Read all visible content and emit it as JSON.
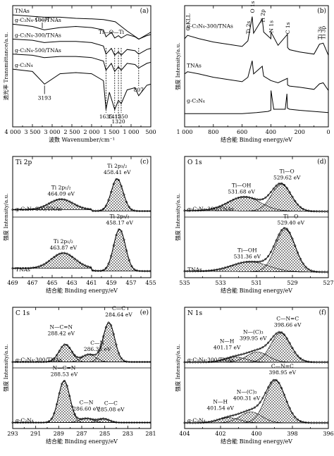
{
  "chart_data": [
    {
      "id": "a",
      "type": "line",
      "panel_label": "(a)",
      "xlabel": "波数 Wavenumber/cm⁻¹",
      "ylabel": "透光率 Transmittance/a.u.",
      "xlim": [
        4000,
        500
      ],
      "x_reversed": true,
      "xticks": [
        "4 000",
        "3 500",
        "3 000",
        "2 500",
        "2 000",
        "1 500",
        "1 000",
        "500"
      ],
      "series": [
        {
          "name": "TNAs",
          "x": [
            4000,
            3600,
            3200,
            2800,
            2400,
            2000,
            1700,
            1400,
            1100,
            800,
            600,
            500
          ],
          "y": [
            9.7,
            9.6,
            9.5,
            9.5,
            9.4,
            9.35,
            9.3,
            9.1,
            8.3,
            7.6,
            8.0,
            8.2
          ]
        },
        {
          "name": "g-C₃N₄-100/TNAs",
          "x": [
            4000,
            3500,
            3200,
            2800,
            2400,
            2000,
            1700,
            1635,
            1500,
            1415,
            1320,
            1250,
            1100,
            900,
            807,
            600,
            500
          ],
          "y": [
            8.9,
            8.7,
            8.4,
            8.6,
            8.7,
            8.6,
            8.4,
            7.8,
            8.2,
            7.7,
            7.9,
            7.7,
            8.0,
            7.8,
            7.6,
            7.9,
            8.0
          ]
        },
        {
          "name": "g-C₃N₄-300/TNAs",
          "x": [
            4000,
            3500,
            3200,
            2800,
            2400,
            2000,
            1700,
            1635,
            1500,
            1415,
            1320,
            1250,
            1100,
            900,
            807,
            600,
            500
          ],
          "y": [
            7.6,
            7.5,
            7.3,
            7.4,
            7.4,
            7.3,
            7.0,
            6.3,
            6.8,
            6.2,
            6.5,
            6.2,
            6.7,
            6.6,
            6.3,
            6.7,
            6.8
          ]
        },
        {
          "name": "g-C₃N₄-500/TNAs",
          "x": [
            4000,
            3500,
            3200,
            2800,
            2400,
            2000,
            1700,
            1635,
            1500,
            1415,
            1320,
            1250,
            1100,
            900,
            807,
            600,
            500
          ],
          "y": [
            6.3,
            6.2,
            6.0,
            6.1,
            6.1,
            6.0,
            5.7,
            4.9,
            5.5,
            4.8,
            5.2,
            4.9,
            5.5,
            5.4,
            5.1,
            5.5,
            5.6
          ]
        },
        {
          "name": "g-C₃N₄",
          "x": [
            4000,
            3500,
            3193,
            2800,
            2400,
            2000,
            1700,
            1635,
            1550,
            1415,
            1320,
            1250,
            1100,
            900,
            807,
            600,
            500
          ],
          "y": [
            5.0,
            4.8,
            3.7,
            4.6,
            4.7,
            4.6,
            4.0,
            1.5,
            3.0,
            1.5,
            2.3,
            2.0,
            3.2,
            3.4,
            2.7,
            3.6,
            3.7
          ]
        }
      ],
      "annotations": [
        "O—H",
        "Ti—O—Ti",
        "3193",
        "1635",
        "1415",
        "1320",
        "1250",
        "807"
      ]
    },
    {
      "id": "b",
      "type": "line",
      "panel_label": "(b)",
      "xlabel": "结合能 Binding energy/eV",
      "ylabel": "强度 Intensity/a.u.",
      "xlim": [
        1000,
        0
      ],
      "x_reversed": true,
      "xticks": [
        "1 000",
        "800",
        "600",
        "400",
        "200",
        "0"
      ],
      "series": [
        {
          "name": "g-C₃N₄-300/TNAs",
          "x": [
            1000,
            980,
            900,
            800,
            700,
            600,
            560,
            530,
            520,
            460,
            455,
            450,
            400,
            399,
            350,
            285,
            284,
            270,
            200,
            100,
            62,
            36,
            0
          ],
          "y": [
            8.0,
            8.3,
            8.0,
            7.7,
            7.5,
            7.3,
            7.8,
            10.0,
            8.5,
            9.8,
            9.2,
            8.6,
            8.0,
            8.6,
            7.4,
            8.4,
            7.2,
            7.0,
            6.8,
            6.6,
            7.5,
            7.6,
            6.5
          ]
        },
        {
          "name": "TNAs",
          "x": [
            1000,
            980,
            900,
            800,
            700,
            600,
            560,
            530,
            520,
            460,
            455,
            450,
            400,
            350,
            285,
            284,
            270,
            200,
            100,
            62,
            36,
            0
          ],
          "y": [
            4.8,
            5.0,
            4.8,
            4.5,
            4.3,
            4.1,
            4.5,
            6.0,
            4.8,
            5.5,
            5.0,
            4.6,
            4.2,
            4.0,
            4.4,
            3.8,
            3.7,
            3.6,
            3.4,
            3.9,
            4.0,
            3.3
          ]
        },
        {
          "name": "g-C₃N₄",
          "x": [
            1000,
            800,
            600,
            500,
            420,
            400,
            399,
            380,
            300,
            288,
            285,
            270,
            200,
            100,
            0
          ],
          "y": [
            1.2,
            1.2,
            1.2,
            1.3,
            1.4,
            1.5,
            3.3,
            1.6,
            1.6,
            3.0,
            1.7,
            1.6,
            1.5,
            1.4,
            1.3
          ]
        }
      ],
      "annotations": [
        "O KLL",
        "Ti 2s",
        "O 1s",
        "Ti 2p",
        "N 1s",
        "C 1s",
        "Ti 3s",
        "Ti 3p"
      ]
    },
    {
      "id": "c",
      "type": "line",
      "panel_label": "(c)",
      "element": "Ti 2p",
      "xlabel": "结合能 Binding energy/eV",
      "ylabel": "强度 Intensity/a.u.",
      "xlim": [
        469,
        455
      ],
      "x_reversed": true,
      "xticks": [
        "469",
        "467",
        "465",
        "463",
        "461",
        "459",
        "457",
        "455"
      ],
      "series": [
        {
          "name": "g-C₃N₄-300/TNAs",
          "peaks": [
            {
              "center": 464.09,
              "height": 1.3,
              "width": 1.2
            },
            {
              "center": 458.41,
              "height": 4.0,
              "width": 0.6
            }
          ]
        },
        {
          "name": "TNAs",
          "peaks": [
            {
              "center": 463.87,
              "height": 1.9,
              "width": 1.2
            },
            {
              "center": 458.17,
              "height": 5.2,
              "width": 0.6
            }
          ]
        }
      ],
      "annotations": [
        {
          "label": "Ti 2p₁/₂",
          "value": "464.09 eV"
        },
        {
          "label": "Ti 2p₃/₂",
          "value": "458.41 eV"
        },
        {
          "label": "Ti 2p₁/₂",
          "value": "463.87 eV"
        },
        {
          "label": "Ti 2p₃/₂",
          "value": "458.17 eV"
        }
      ]
    },
    {
      "id": "d",
      "type": "line",
      "panel_label": "(d)",
      "element": "O 1s",
      "xlabel": "结合能 Binding energy/eV",
      "ylabel": "强度 Intensity/a.u.",
      "xlim": [
        535,
        527
      ],
      "x_reversed": true,
      "xticks": [
        "535",
        "533",
        "531",
        "529",
        "527"
      ],
      "series": [
        {
          "name": "g-C₃N₄-300/TNAs",
          "peaks": [
            {
              "center": 531.68,
              "height": 2.0,
              "width": 0.9
            },
            {
              "center": 529.62,
              "height": 3.8,
              "width": 0.55
            }
          ]
        },
        {
          "name": "TNAs",
          "peaks": [
            {
              "center": 531.36,
              "height": 1.4,
              "width": 1.0
            },
            {
              "center": 529.4,
              "height": 6.0,
              "width": 0.55
            }
          ]
        }
      ],
      "annotations": [
        {
          "label": "Ti—OH",
          "value": "531.68 eV"
        },
        {
          "label": "Ti—O",
          "value": "529.62 eV"
        },
        {
          "label": "Ti—OH",
          "value": "531.36 eV"
        },
        {
          "label": "Ti—O",
          "value": "529.40 eV"
        }
      ]
    },
    {
      "id": "e",
      "type": "line",
      "panel_label": "(e)",
      "element": "C 1s",
      "xlabel": "结合能 Binding energy/eV",
      "ylabel": "强度 Intensity/a.u.",
      "xlim": [
        293,
        281
      ],
      "x_reversed": true,
      "xticks": [
        "293",
        "291",
        "289",
        "287",
        "285",
        "283",
        "281"
      ],
      "series": [
        {
          "name": "g-C₃N₄-300/TNAs",
          "peaks": [
            {
              "center": 288.42,
              "height": 2.1,
              "width": 0.55
            },
            {
              "center": 286.38,
              "height": 0.9,
              "width": 0.6
            },
            {
              "center": 284.64,
              "height": 4.7,
              "width": 0.5
            }
          ]
        },
        {
          "name": "g-C₃N₄",
          "peaks": [
            {
              "center": 288.53,
              "height": 5.0,
              "width": 0.5
            },
            {
              "center": 286.6,
              "height": 0.5,
              "width": 0.6
            },
            {
              "center": 285.08,
              "height": 0.45,
              "width": 0.5
            }
          ]
        }
      ],
      "annotations": [
        {
          "label": "N—C=N",
          "value": "288.42 eV"
        },
        {
          "label": "C—N",
          "value": "286.38 eV"
        },
        {
          "label": "C—C",
          "value": "284.64 eV"
        },
        {
          "label": "N—C=N",
          "value": "288.53 eV"
        },
        {
          "label": "C—N",
          "value": "286.60 eV"
        },
        {
          "label": "C—C",
          "value": "285.08 eV"
        }
      ]
    },
    {
      "id": "f",
      "type": "line",
      "panel_label": "(f)",
      "element": "N 1s",
      "xlabel": "结合能 Binding energy/eV",
      "ylabel": "强度 Intensity/a.u.",
      "xlim": [
        404,
        396
      ],
      "x_reversed": true,
      "xticks": [
        "404",
        "402",
        "400",
        "398",
        "396"
      ],
      "series": [
        {
          "name": "g-C₃N₄-300/TNAs",
          "peaks": [
            {
              "center": 401.17,
              "height": 0.7,
              "width": 0.6
            },
            {
              "center": 399.95,
              "height": 1.4,
              "width": 0.6
            },
            {
              "center": 398.66,
              "height": 4.0,
              "width": 0.55
            }
          ]
        },
        {
          "name": "g-C₃N₄",
          "peaks": [
            {
              "center": 401.54,
              "height": 0.7,
              "width": 0.6
            },
            {
              "center": 400.31,
              "height": 1.5,
              "width": 0.6
            },
            {
              "center": 398.95,
              "height": 5.8,
              "width": 0.55
            }
          ]
        }
      ],
      "annotations": [
        {
          "label": "N—H",
          "value": "401.17 eV"
        },
        {
          "label": "N—(C)₃",
          "value": "399.95 eV"
        },
        {
          "label": "C—N=C",
          "value": "398.66 eV"
        },
        {
          "label": "N—H",
          "value": "401.54 eV"
        },
        {
          "label": "N—(C)₃",
          "value": "400.31 eV"
        },
        {
          "label": "C—N=C",
          "value": "398.95 eV"
        }
      ]
    }
  ]
}
